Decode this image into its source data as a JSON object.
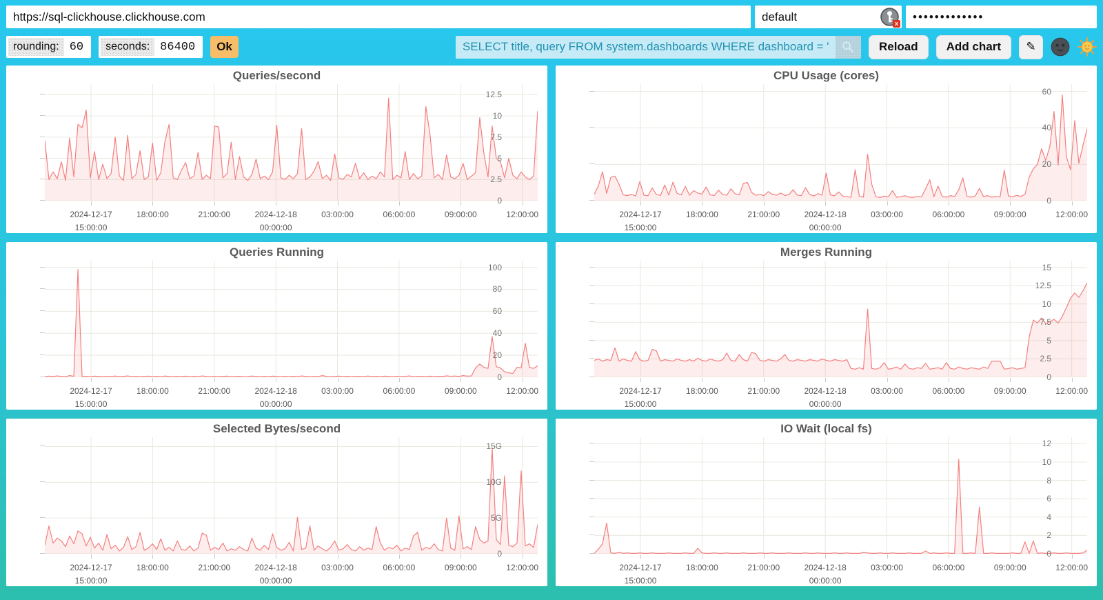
{
  "topbar": {
    "url_value": "https://sql-clickhouse.clickhouse.com",
    "user_value": "default",
    "password_value": "•••••••••••••"
  },
  "controls": {
    "rounding_label": "rounding:",
    "rounding_value": "60",
    "seconds_label": "seconds:",
    "seconds_value": "86400",
    "ok_label": "Ok",
    "query_value": "SELECT title, query FROM system.dashboards WHERE dashboard = '",
    "reload_label": "Reload",
    "add_chart_label": "Add chart",
    "edit_icon_glyph": "✎"
  },
  "colors": {
    "background_top": "#28c7ee",
    "background_bottom": "#2cbfae",
    "panel": "#ffffff",
    "line": "#f47f7f",
    "fill": "rgba(244,127,127,0.14)",
    "grid": "#e9e9e0",
    "ok_button": "#f8bd69",
    "query_bg": "#c6ebf6",
    "query_text": "#2191b2"
  },
  "chart_data": {
    "type": "area",
    "time_axis": {
      "x_start": "2024-12-17 12:45:00",
      "x_end": "2024-12-18 12:45:00",
      "tick_hours": [
        15,
        18,
        21,
        24,
        27,
        30,
        33,
        36
      ],
      "tick_labels": [
        [
          "2024-12-17",
          "15:00:00"
        ],
        [
          "18:00:00"
        ],
        [
          "21:00:00"
        ],
        [
          "2024-12-18",
          "00:00:00"
        ],
        [
          "03:00:00"
        ],
        [
          "06:00:00"
        ],
        [
          "09:00:00"
        ],
        [
          "12:00:00"
        ]
      ],
      "domain_start_hour": 12.75,
      "domain_hours": 24,
      "grid": true,
      "legend": "none"
    },
    "charts": [
      {
        "title": "Queries/second",
        "y_ticks": [
          0,
          2.5,
          5,
          7.5,
          10,
          12.5
        ],
        "y_tick_labels": [
          "0",
          "2.5",
          "5",
          "7.5",
          "10",
          "12.5"
        ],
        "y_plot_max": 13.75,
        "values": [
          7.1,
          2.5,
          3.4,
          2.6,
          4.6,
          2.4,
          7.4,
          2.8,
          9.0,
          8.6,
          10.7,
          2.7,
          5.8,
          2.5,
          4.3,
          2.6,
          3.2,
          7.5,
          2.9,
          2.4,
          7.7,
          2.6,
          3.1,
          5.9,
          2.5,
          2.8,
          6.8,
          2.4,
          3.3,
          7.0,
          9.0,
          2.7,
          2.5,
          3.6,
          4.5,
          2.6,
          2.9,
          5.7,
          2.5,
          3.0,
          2.6,
          8.8,
          8.7,
          2.7,
          3.2,
          6.9,
          2.5,
          5.2,
          2.8,
          2.4,
          3.1,
          4.9,
          2.6,
          2.9,
          2.5,
          3.4,
          8.9,
          2.7,
          2.5,
          3.0,
          2.6,
          3.2,
          8.5,
          2.5,
          2.8,
          3.5,
          4.6,
          2.6,
          3.0,
          2.4,
          5.5,
          2.7,
          2.5,
          3.1,
          2.8,
          4.4,
          2.6,
          3.3,
          2.5,
          2.9,
          2.6,
          3.4,
          2.8,
          12.1,
          2.5,
          3.0,
          2.7,
          5.8,
          2.5,
          3.2,
          2.6,
          2.9,
          11.1,
          7.8,
          2.7,
          3.1,
          2.5,
          5.4,
          2.8,
          2.6,
          3.0,
          4.4,
          2.5,
          2.9,
          3.3,
          9.8,
          5.6,
          2.8,
          8.8,
          5.0,
          4.6,
          2.7,
          5.0,
          3.0,
          2.6,
          3.4,
          2.8,
          2.5,
          2.9,
          10.6
        ]
      },
      {
        "title": "CPU Usage (cores)",
        "y_ticks": [
          0,
          20,
          40,
          60
        ],
        "y_tick_labels": [
          "0",
          "20",
          "40",
          "60"
        ],
        "y_plot_max": 64,
        "values": [
          3.5,
          8.2,
          15.9,
          4.0,
          12.8,
          13.5,
          9.0,
          3.2,
          2.8,
          3.5,
          2.6,
          10.5,
          3.0,
          2.8,
          7.0,
          3.4,
          2.9,
          8.6,
          3.1,
          10.2,
          4.0,
          3.2,
          7.8,
          3.0,
          5.5,
          4.2,
          3.6,
          7.5,
          3.2,
          2.9,
          5.8,
          3.4,
          3.0,
          6.5,
          3.8,
          3.2,
          9.5,
          10.0,
          4.5,
          3.0,
          3.4,
          2.8,
          5.0,
          3.5,
          3.0,
          4.2,
          2.9,
          3.3,
          6.0,
          3.1,
          2.8,
          7.2,
          3.4,
          2.6,
          3.9,
          3.0,
          15.2,
          3.2,
          2.7,
          4.8,
          2.5,
          2.2,
          1.9,
          17.0,
          2.4,
          2.0,
          25.5,
          9.0,
          2.2,
          1.8,
          2.5,
          2.1,
          5.5,
          1.9,
          2.3,
          2.7,
          2.0,
          1.8,
          2.4,
          2.1,
          6.5,
          11.5,
          2.2,
          8.0,
          2.5,
          1.9,
          2.8,
          2.3,
          6.0,
          12.5,
          2.4,
          2.0,
          2.6,
          6.8,
          2.2,
          2.8,
          1.9,
          2.4,
          2.1,
          16.8,
          2.6,
          2.2,
          2.9,
          2.4,
          3.5,
          13.0,
          17.5,
          20.0,
          28.5,
          22.0,
          30.0,
          49.0,
          19.5,
          58.0,
          24.0,
          17.0,
          44.0,
          20.5,
          30.5,
          39.5
        ]
      },
      {
        "title": "Queries Running",
        "y_ticks": [
          0,
          20,
          40,
          60,
          80,
          100
        ],
        "y_tick_labels": [
          "0",
          "20",
          "40",
          "60",
          "80",
          "100"
        ],
        "y_plot_max": 106,
        "values": [
          0.5,
          1.0,
          0.7,
          1.2,
          0.8,
          0.5,
          1.5,
          0.9,
          98.0,
          0.6,
          0.8,
          0.5,
          1.0,
          0.7,
          0.4,
          0.9,
          0.6,
          1.1,
          0.5,
          0.8,
          1.2,
          0.6,
          0.9,
          0.5,
          0.7,
          1.0,
          0.6,
          0.8,
          0.5,
          1.1,
          0.7,
          0.5,
          0.9,
          0.6,
          1.0,
          0.5,
          0.8,
          0.6,
          1.2,
          0.7,
          0.5,
          0.9,
          0.6,
          0.8,
          1.0,
          0.5,
          0.7,
          0.9,
          0.6,
          0.5,
          1.1,
          0.7,
          0.5,
          0.8,
          0.6,
          1.0,
          0.7,
          0.5,
          0.9,
          0.6,
          0.8,
          0.5,
          1.2,
          0.7,
          0.5,
          0.9,
          0.6,
          1.5,
          0.8,
          0.5,
          0.7,
          1.0,
          0.6,
          0.8,
          0.5,
          0.9,
          0.7,
          0.5,
          1.1,
          0.6,
          0.8,
          0.5,
          1.0,
          0.7,
          0.5,
          0.9,
          0.6,
          0.8,
          1.2,
          0.5,
          0.7,
          0.9,
          0.6,
          1.0,
          0.5,
          0.8,
          0.7,
          1.3,
          0.9,
          1.1,
          0.8,
          1.5,
          1.0,
          1.2,
          8.5,
          12.0,
          9.0,
          8.0,
          37.0,
          9.5,
          8.5,
          5.0,
          4.0,
          3.5,
          9.0,
          8.5,
          31.0,
          9.0,
          8.0,
          10.5
        ]
      },
      {
        "title": "Merges Running",
        "y_ticks": [
          0,
          2.5,
          5,
          7.5,
          10,
          12.5,
          15
        ],
        "y_tick_labels": [
          "0",
          "2.5",
          "5",
          "7.5",
          "10",
          "12.5",
          "15"
        ],
        "y_plot_max": 15.9,
        "values": [
          2.3,
          2.5,
          2.2,
          2.4,
          2.3,
          4.0,
          2.2,
          2.5,
          2.3,
          2.2,
          3.5,
          2.4,
          2.2,
          2.3,
          3.8,
          3.6,
          2.2,
          2.4,
          2.3,
          2.2,
          2.5,
          2.3,
          2.2,
          2.4,
          2.2,
          2.6,
          2.3,
          2.2,
          2.5,
          2.3,
          2.2,
          2.4,
          3.3,
          2.3,
          2.2,
          3.1,
          2.4,
          2.2,
          3.4,
          3.2,
          2.3,
          2.2,
          2.4,
          2.3,
          2.2,
          2.5,
          3.1,
          2.3,
          2.2,
          2.4,
          2.3,
          2.2,
          2.4,
          2.3,
          2.2,
          2.5,
          2.3,
          2.2,
          2.4,
          2.3,
          2.2,
          2.4,
          1.2,
          1.1,
          1.3,
          1.1,
          9.3,
          1.2,
          1.1,
          1.3,
          2.0,
          1.1,
          1.2,
          1.4,
          1.1,
          1.8,
          1.2,
          1.1,
          1.3,
          1.2,
          1.9,
          1.1,
          1.2,
          1.3,
          1.1,
          2.0,
          1.2,
          1.1,
          1.4,
          1.2,
          1.1,
          1.3,
          1.2,
          1.1,
          1.4,
          1.2,
          2.2,
          2.2,
          2.2,
          1.1,
          1.2,
          1.3,
          1.1,
          1.2,
          1.3,
          5.5,
          7.8,
          7.4,
          8.1,
          7.3,
          7.6,
          7.9,
          7.4,
          8.3,
          9.5,
          10.8,
          11.5,
          10.9,
          11.8,
          12.9
        ]
      },
      {
        "title": "Selected Bytes/second",
        "y_ticks": [
          0,
          5,
          10,
          15
        ],
        "y_tick_labels": [
          "0",
          "5G",
          "10G",
          "15G"
        ],
        "y_plot_max": 16.3,
        "unit": "GB/s",
        "values": [
          1.2,
          3.9,
          1.5,
          2.2,
          1.8,
          1.0,
          2.5,
          1.4,
          3.2,
          2.8,
          1.1,
          2.3,
          0.8,
          1.5,
          0.5,
          2.7,
          0.7,
          1.2,
          0.4,
          0.9,
          2.4,
          0.6,
          1.0,
          3.0,
          0.5,
          0.8,
          1.4,
          0.6,
          2.1,
          0.5,
          0.9,
          0.4,
          1.8,
          0.6,
          0.5,
          1.1,
          0.4,
          0.8,
          2.9,
          2.6,
          0.5,
          0.9,
          0.6,
          1.5,
          0.4,
          0.7,
          0.5,
          1.0,
          0.6,
          0.4,
          2.2,
          0.8,
          0.5,
          1.2,
          0.6,
          2.8,
          0.9,
          0.5,
          0.7,
          1.6,
          0.4,
          5.1,
          0.6,
          0.8,
          3.9,
          0.5,
          1.1,
          0.7,
          0.4,
          0.9,
          1.8,
          0.5,
          0.7,
          1.3,
          0.6,
          0.4,
          1.0,
          0.5,
          0.8,
          0.6,
          3.8,
          1.5,
          0.5,
          0.9,
          0.7,
          1.2,
          0.4,
          0.8,
          0.6,
          2.5,
          3.0,
          0.5,
          0.9,
          0.7,
          1.4,
          0.6,
          0.4,
          5.0,
          0.8,
          0.5,
          5.3,
          0.7,
          1.0,
          0.6,
          3.8,
          2.0,
          1.5,
          1.8,
          14.8,
          2.0,
          1.3,
          10.9,
          1.2,
          1.0,
          1.5,
          11.6,
          1.1,
          1.4,
          0.9,
          4.1
        ]
      },
      {
        "title": "IO Wait (local fs)",
        "y_ticks": [
          0,
          2,
          4,
          6,
          8,
          10,
          12
        ],
        "y_tick_labels": [
          "0",
          "2",
          "4",
          "6",
          "8",
          "10",
          "12"
        ],
        "y_plot_max": 12.7,
        "values": [
          0.05,
          0.5,
          1.1,
          3.35,
          0.1,
          0.05,
          0.15,
          0.05,
          0.1,
          0.05,
          0.05,
          0.1,
          0.05,
          0.05,
          0.1,
          0.05,
          0.05,
          0.05,
          0.1,
          0.05,
          0.05,
          0.05,
          0.1,
          0.05,
          0.05,
          0.6,
          0.1,
          0.05,
          0.05,
          0.1,
          0.05,
          0.05,
          0.1,
          0.05,
          0.05,
          0.05,
          0.1,
          0.05,
          0.05,
          0.05,
          0.1,
          0.05,
          0.05,
          0.1,
          0.05,
          0.05,
          0.05,
          0.1,
          0.05,
          0.05,
          0.05,
          0.1,
          0.05,
          0.05,
          0.1,
          0.05,
          0.05,
          0.05,
          0.1,
          0.05,
          0.05,
          0.1,
          0.05,
          0.05,
          0.05,
          0.15,
          0.1,
          0.05,
          0.05,
          0.1,
          0.05,
          0.05,
          0.1,
          0.05,
          0.05,
          0.05,
          0.1,
          0.05,
          0.05,
          0.05,
          0.3,
          0.05,
          0.1,
          0.05,
          0.05,
          0.1,
          0.05,
          0.05,
          10.3,
          0.05,
          0.05,
          0.1,
          0.05,
          5.1,
          0.05,
          0.05,
          0.1,
          0.05,
          0.05,
          0.05,
          0.05,
          0.1,
          0.05,
          0.05,
          1.3,
          0.05,
          1.4,
          0.05,
          0.1,
          0.05,
          0.05,
          0.1,
          0.05,
          0.05,
          0.1,
          0.05,
          0.05,
          0.05,
          0.1,
          0.4
        ]
      }
    ]
  }
}
